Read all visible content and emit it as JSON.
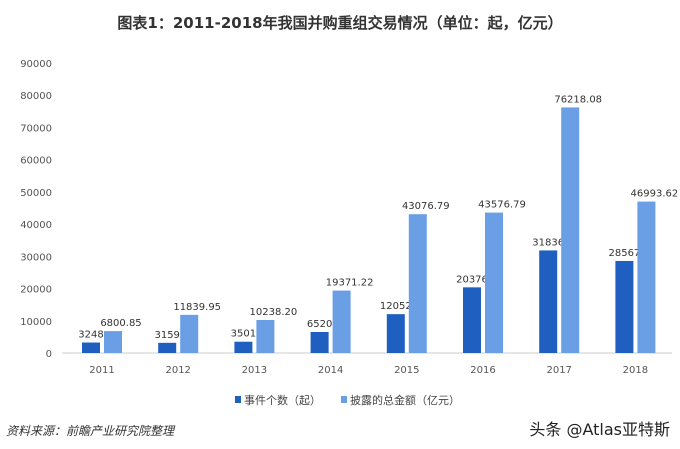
{
  "chart_data": {
    "type": "bar",
    "title": "图表1：2011-2018年我国并购重组交易情况（单位：起，亿元）",
    "categories": [
      "2011",
      "2012",
      "2013",
      "2014",
      "2015",
      "2016",
      "2017",
      "2018"
    ],
    "series": [
      {
        "name": "事件个数（起）",
        "color": "#1f5fbf",
        "values": [
          3248,
          3159,
          3501,
          6520,
          12052,
          20376,
          31836,
          28567
        ],
        "labels": [
          "3248",
          "3159",
          "3501",
          "6520",
          "12052",
          "20376",
          "31836",
          "28567"
        ]
      },
      {
        "name": "披露的总金额（亿元）",
        "color": "#6a9fe6",
        "values": [
          6800.85,
          11839.95,
          10238.2,
          19371.22,
          43076.79,
          43576.79,
          76218.08,
          46993.62
        ],
        "labels": [
          "6800.85",
          "11839.95",
          "10238.20",
          "19371.22",
          "43076.79",
          "43576.79",
          "76218.08",
          "46993.62"
        ]
      }
    ],
    "ylim": [
      0,
      90000
    ],
    "yticks": [
      "0",
      "10000",
      "20000",
      "30000",
      "40000",
      "50000",
      "60000",
      "70000",
      "80000",
      "90000"
    ],
    "grid": false,
    "legend": "bottom"
  },
  "footer": {
    "source": "资料来源：前瞻产业研究院整理",
    "watermark": "头条 @Atlas亚特斯"
  }
}
